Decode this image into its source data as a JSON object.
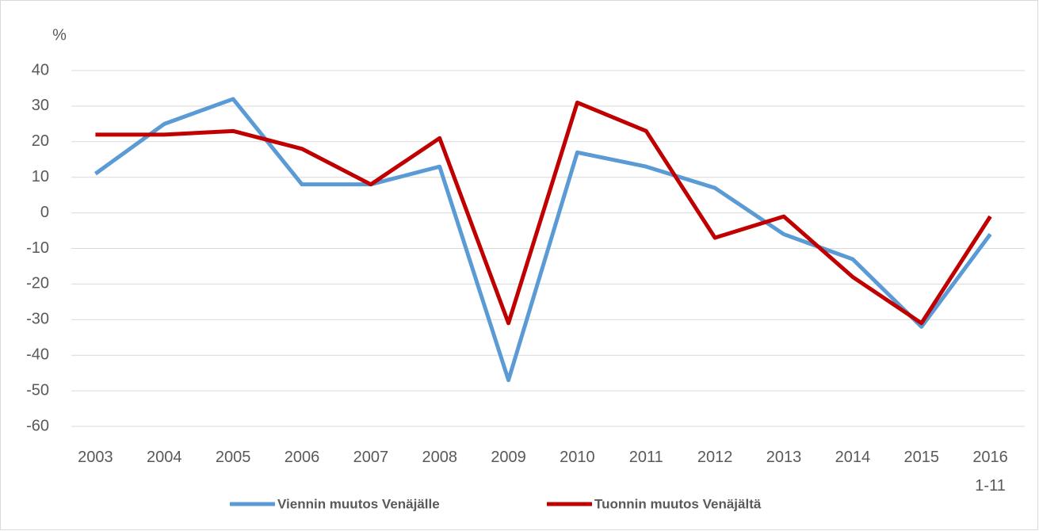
{
  "chart_data": {
    "type": "line",
    "y_label": "%",
    "categories": [
      "2003",
      "2004",
      "2005",
      "2006",
      "2007",
      "2008",
      "2009",
      "2010",
      "2011",
      "2012",
      "2013",
      "2014",
      "2015",
      "2016 1-11"
    ],
    "series": [
      {
        "name": "Viennin muutos Venäjälle",
        "color": "#5b9bd5",
        "values": [
          11,
          25,
          32,
          8,
          8,
          13,
          -47,
          17,
          13,
          7,
          -6,
          -13,
          -32,
          -6
        ]
      },
      {
        "name": "Tuonnin muutos Venäjältä",
        "color": "#c00000",
        "values": [
          22,
          22,
          23,
          18,
          8,
          21,
          -31,
          31,
          23,
          -7,
          -1,
          -18,
          -31,
          -1
        ]
      }
    ],
    "ylim": [
      -60,
      40
    ],
    "yticks": [
      -60,
      -50,
      -40,
      -30,
      -20,
      -10,
      0,
      10,
      20,
      30,
      40
    ],
    "grid": true,
    "legend": "bottom"
  }
}
